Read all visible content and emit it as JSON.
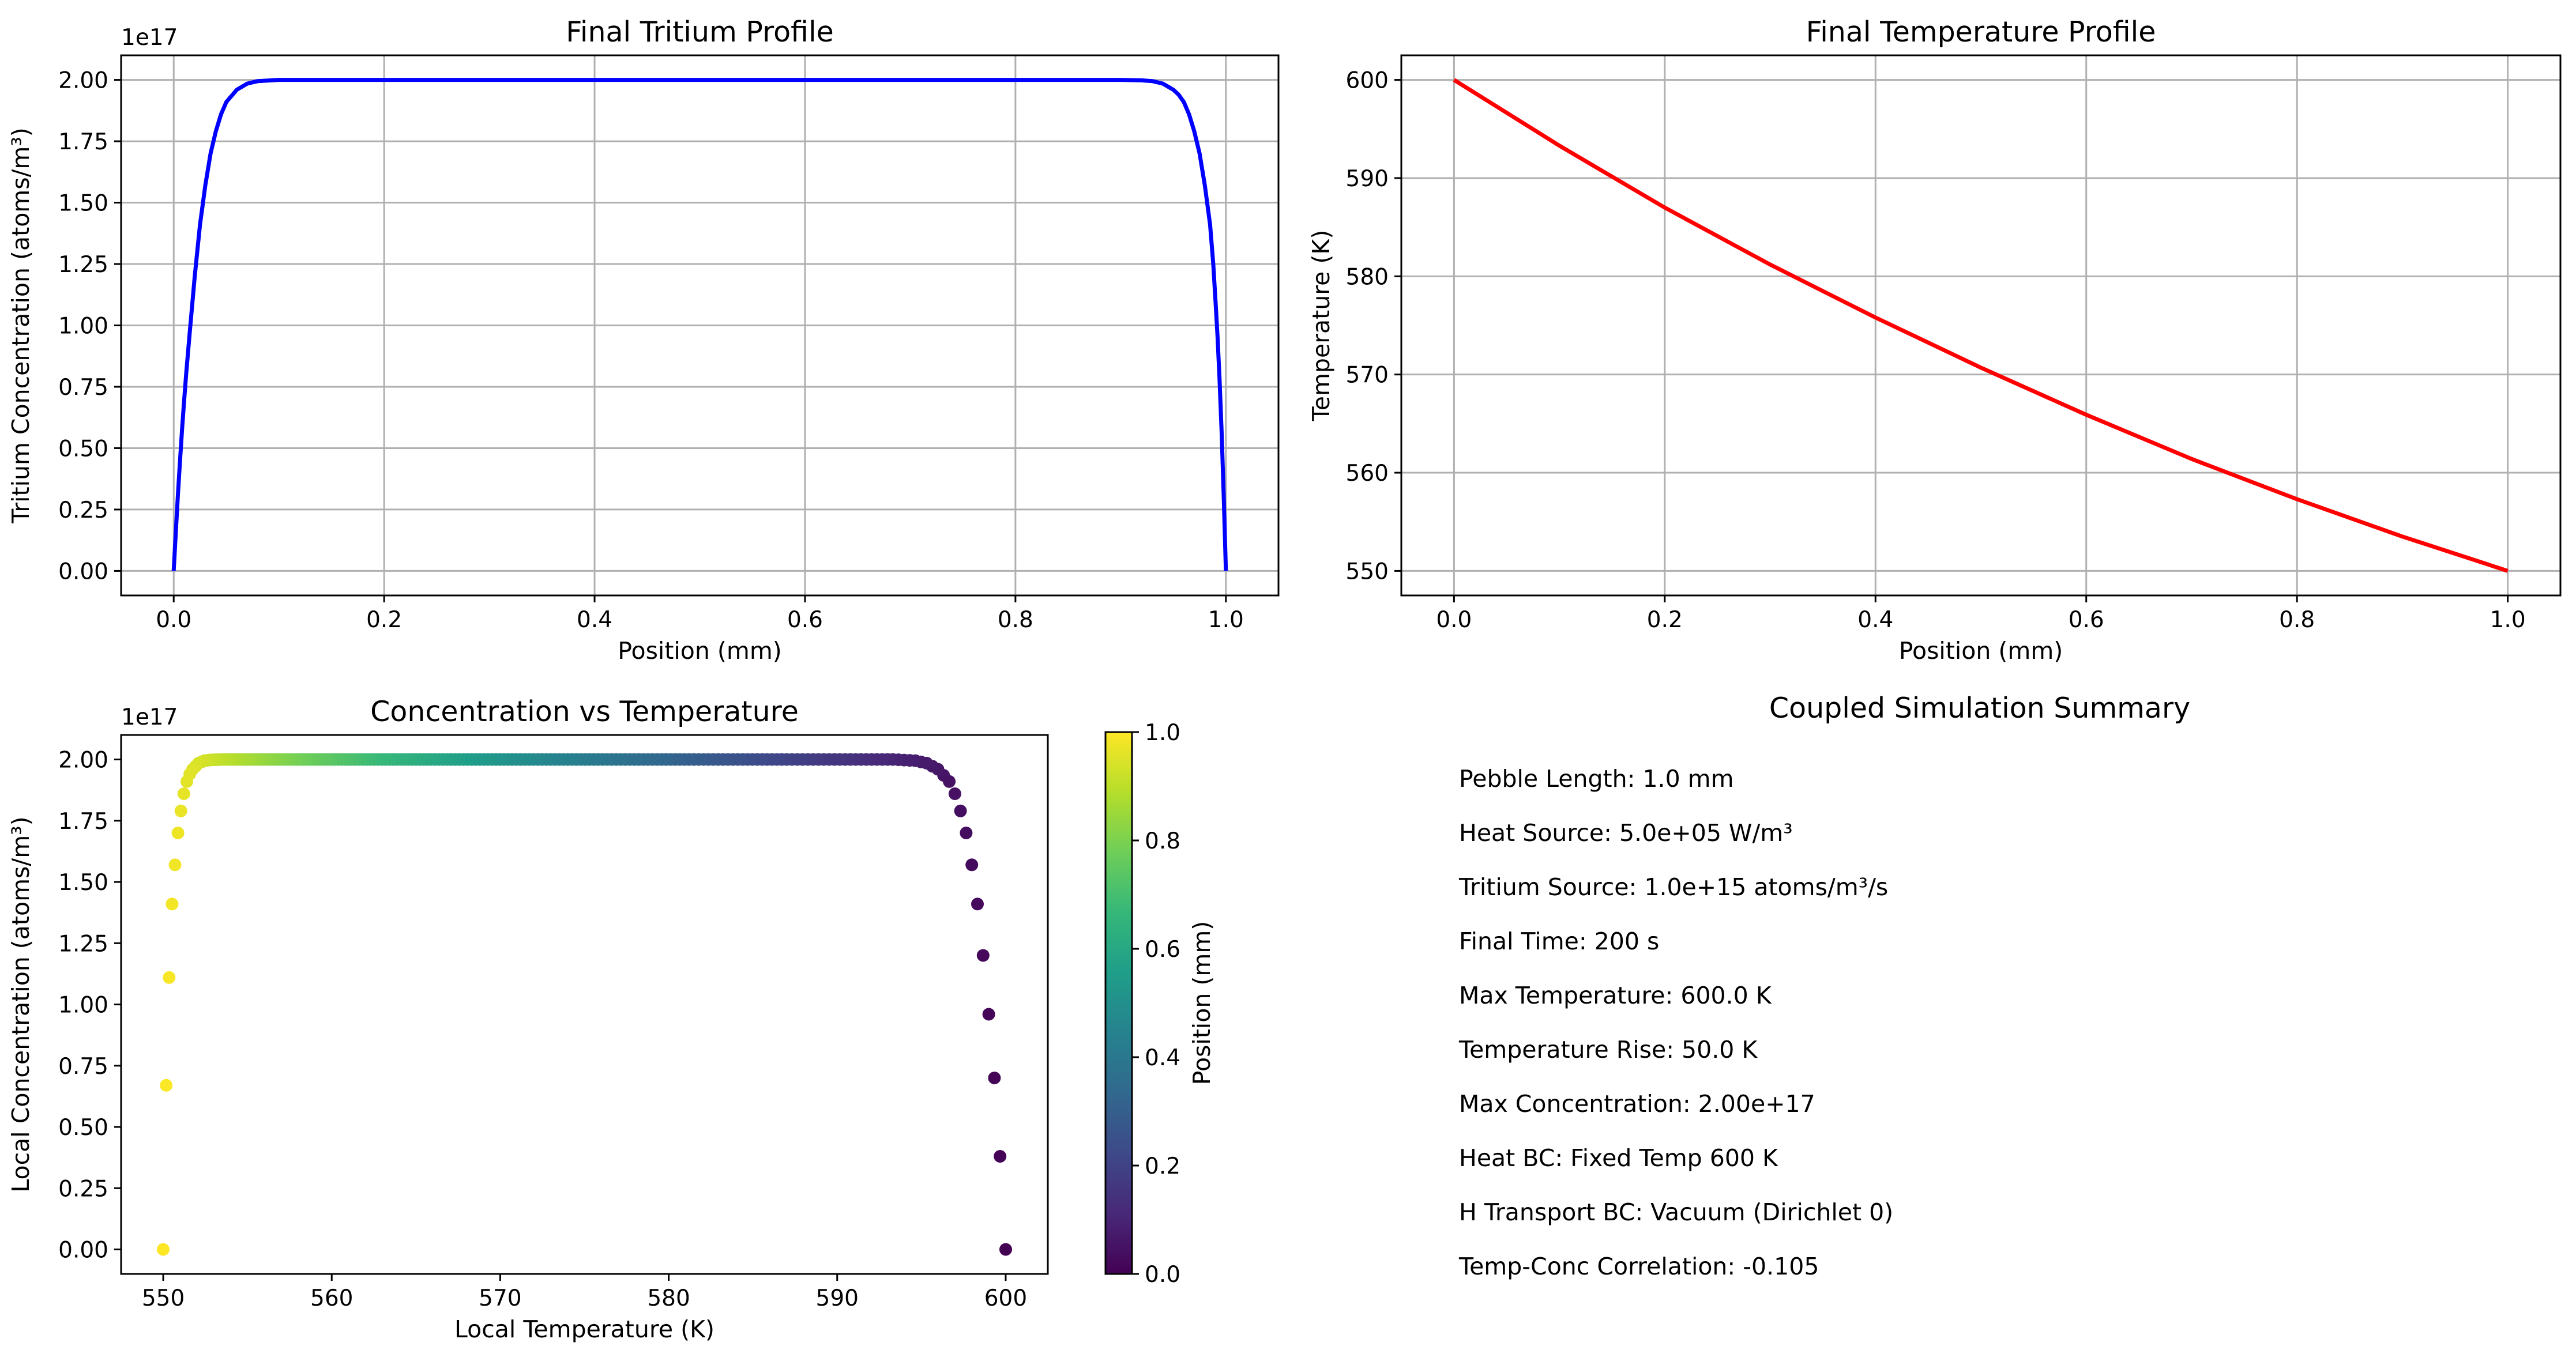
{
  "chart_data": [
    {
      "id": "tritium",
      "type": "line",
      "title": "Final Tritium Profile",
      "xlabel": "Position (mm)",
      "ylabel": "Tritium Concentration (atoms/m³)",
      "y_offset_text": "1e17",
      "xlim": [
        -0.05,
        1.05
      ],
      "ylim": [
        -0.1,
        2.1
      ],
      "x_ticks": [
        "0.0",
        "0.2",
        "0.4",
        "0.6",
        "0.8",
        "1.0"
      ],
      "y_ticks": [
        "0.00",
        "0.25",
        "0.50",
        "0.75",
        "1.00",
        "1.25",
        "1.50",
        "1.75",
        "2.00"
      ],
      "grid": true,
      "color": "#0000ff",
      "series": [
        {
          "x": [
            0.0,
            0.002,
            0.004,
            0.006,
            0.008,
            0.01,
            0.012,
            0.015,
            0.02,
            0.025,
            0.03,
            0.035,
            0.04,
            0.045,
            0.05,
            0.06,
            0.07,
            0.08,
            0.1,
            0.2,
            0.3,
            0.4,
            0.5,
            0.6,
            0.7,
            0.8,
            0.9,
            0.92,
            0.93,
            0.94,
            0.95,
            0.955,
            0.96,
            0.965,
            0.97,
            0.975,
            0.98,
            0.985,
            0.988,
            0.99,
            0.992,
            0.994,
            0.996,
            0.998,
            1.0
          ],
          "values": [
            0.0,
            0.16,
            0.31,
            0.45,
            0.58,
            0.7,
            0.81,
            0.96,
            1.2,
            1.41,
            1.57,
            1.7,
            1.79,
            1.86,
            1.91,
            1.96,
            1.985,
            1.995,
            2.0,
            2.0,
            2.0,
            2.0,
            2.0,
            2.0,
            2.0,
            2.0,
            2.0,
            1.998,
            1.995,
            1.985,
            1.96,
            1.94,
            1.91,
            1.86,
            1.79,
            1.7,
            1.57,
            1.41,
            1.25,
            1.11,
            0.96,
            0.78,
            0.56,
            0.3,
            0.0
          ]
        }
      ]
    },
    {
      "id": "temperature",
      "type": "line",
      "title": "Final Temperature Profile",
      "xlabel": "Position (mm)",
      "ylabel": "Temperature (K)",
      "xlim": [
        -0.05,
        1.05
      ],
      "ylim": [
        547.5,
        602.5
      ],
      "x_ticks": [
        "0.0",
        "0.2",
        "0.4",
        "0.6",
        "0.8",
        "1.0"
      ],
      "y_ticks": [
        "550",
        "560",
        "570",
        "580",
        "590",
        "600"
      ],
      "grid": true,
      "color": "#ff0000",
      "series": [
        {
          "x": [
            0.0,
            0.1,
            0.2,
            0.3,
            0.4,
            0.5,
            0.6,
            0.7,
            0.8,
            0.9,
            1.0
          ],
          "values": [
            600.0,
            593.3,
            587.0,
            581.2,
            575.8,
            570.7,
            565.9,
            561.4,
            557.3,
            553.5,
            550.0
          ]
        }
      ]
    },
    {
      "id": "scatter",
      "type": "scatter",
      "title": "Concentration vs Temperature",
      "xlabel": "Local Temperature (K)",
      "ylabel": "Local Concentration (atoms/m³)",
      "y_offset_text": "1e17",
      "xlim": [
        547.5,
        602.5
      ],
      "ylim": [
        -0.1,
        2.1
      ],
      "x_ticks": [
        "550",
        "560",
        "570",
        "580",
        "590",
        "600"
      ],
      "y_ticks": [
        "0.00",
        "0.25",
        "0.50",
        "0.75",
        "1.00",
        "1.25",
        "1.50",
        "1.75",
        "2.00"
      ],
      "grid": false,
      "colorbar": {
        "label": "Position (mm)",
        "range": [
          0.0,
          1.0
        ],
        "ticks": [
          "0.0",
          "0.2",
          "0.4",
          "0.6",
          "0.8",
          "1.0"
        ],
        "colormap": [
          "#440154",
          "#482878",
          "#3e4989",
          "#31688e",
          "#26828e",
          "#1f9e89",
          "#35b779",
          "#6ece58",
          "#b5de2b",
          "#fde725"
        ]
      }
    }
  ],
  "summary": {
    "title": "Coupled Simulation Summary",
    "lines": [
      "Pebble Length: 1.0 mm",
      "Heat Source: 5.0e+05 W/m³",
      "Tritium Source: 1.0e+15 atoms/m³/s",
      "Final Time: 200 s",
      "Max Temperature: 600.0 K",
      "Temperature Rise: 50.0 K",
      "Max Concentration: 2.00e+17",
      "Heat BC: Fixed Temp 600 K",
      "H Transport BC: Vacuum (Dirichlet 0)",
      "Temp-Conc Correlation: -0.105"
    ]
  }
}
